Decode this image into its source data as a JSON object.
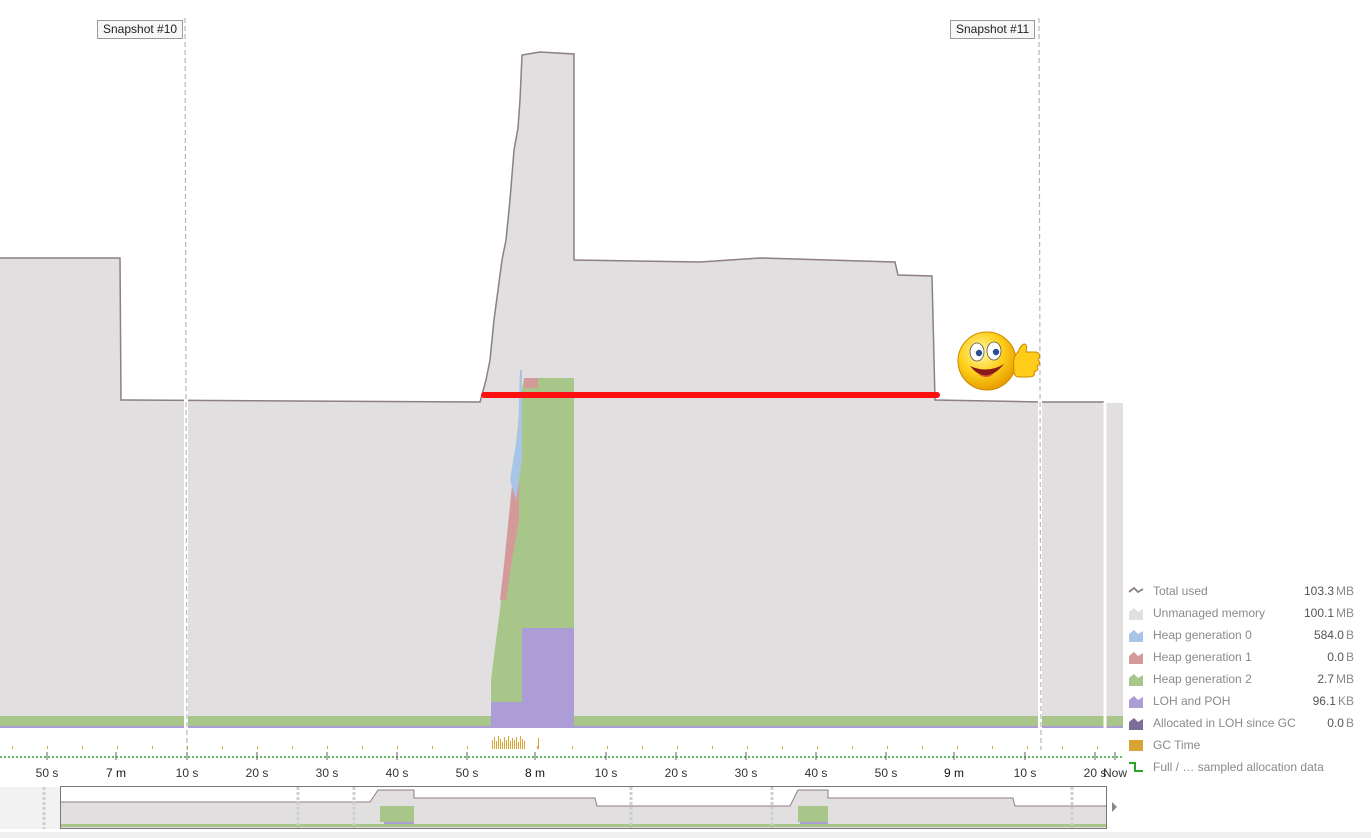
{
  "snapshots": [
    {
      "label": "Snapshot #10"
    },
    {
      "label": "Snapshot #11"
    }
  ],
  "timeline": {
    "ticks": [
      "50 s",
      "7 m",
      "10 s",
      "20 s",
      "30 s",
      "40 s",
      "50 s",
      "8 m",
      "10 s",
      "20 s",
      "30 s",
      "40 s",
      "50 s",
      "9 m",
      "10 s",
      "20 s",
      "Now"
    ]
  },
  "legend": {
    "items": [
      {
        "label": "Total used",
        "value": "103.3",
        "unit": "MB",
        "color": "#8c7f86",
        "kind": "line"
      },
      {
        "label": "Unmanaged memory",
        "value": "100.1",
        "unit": "MB",
        "color": "#e2dfe1",
        "kind": "area"
      },
      {
        "label": "Heap generation 0",
        "value": "584.0",
        "unit": "B",
        "color": "#a8c4e6",
        "kind": "area"
      },
      {
        "label": "Heap generation 1",
        "value": "0.0",
        "unit": "B",
        "color": "#d49a9a",
        "kind": "area"
      },
      {
        "label": "Heap generation 2",
        "value": "2.7",
        "unit": "MB",
        "color": "#a9c68a",
        "kind": "area"
      },
      {
        "label": "LOH and POH",
        "value": "96.1",
        "unit": "KB",
        "color": "#ad9dd6",
        "kind": "area"
      },
      {
        "label": "Allocated in LOH since GC",
        "value": "0.0",
        "unit": "B",
        "color": "#7e6d9a",
        "kind": "area"
      },
      {
        "label": "GC Time",
        "value": "",
        "unit": "",
        "color": "#d9a431",
        "kind": "box"
      },
      {
        "label": "Full / … sampled allocation data",
        "value": "",
        "unit": "",
        "color": "#2aa52a",
        "kind": "step"
      }
    ]
  },
  "colors": {
    "unmanaged": "#e2dfe1",
    "total_line": "#8c7f86",
    "gen2": "#a9c68a",
    "loh": "#ad9dd6",
    "gen0": "#a8c4e6",
    "gen1": "#d49a9a",
    "gc_time": "#d9a431",
    "highlight": "#ff0000"
  }
}
